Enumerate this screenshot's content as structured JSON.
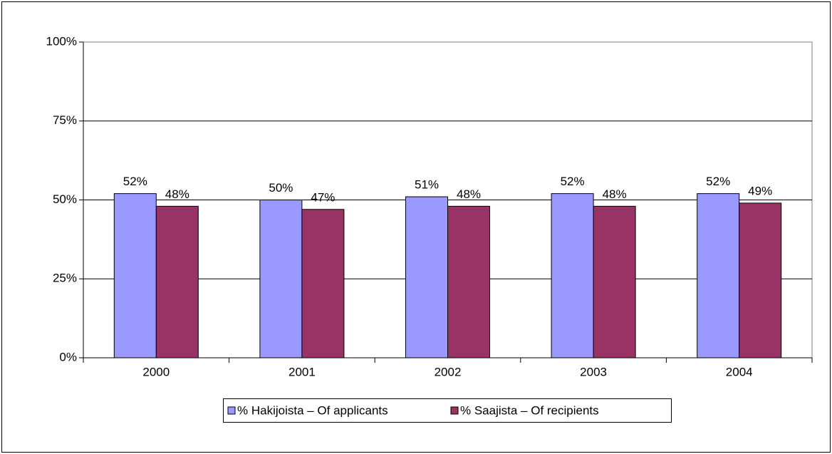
{
  "chart_data": {
    "type": "bar",
    "categories": [
      "2000",
      "2001",
      "2002",
      "2003",
      "2004"
    ],
    "series": [
      {
        "name": "% Hakijoista – Of applicants",
        "color": "#9999ff",
        "values": [
          52,
          50,
          51,
          52,
          52
        ],
        "value_labels": [
          "52%",
          "50%",
          "51%",
          "52%",
          "52%"
        ]
      },
      {
        "name": "% Saajista – Of recipients",
        "color": "#993366",
        "values": [
          48,
          47,
          48,
          48,
          49
        ],
        "value_labels": [
          "48%",
          "47%",
          "48%",
          "48%",
          "49%"
        ]
      }
    ],
    "ylim": [
      0,
      100
    ],
    "yticks": [
      {
        "value": 0,
        "label": "0%"
      },
      {
        "value": 25,
        "label": "25%"
      },
      {
        "value": 50,
        "label": "50%"
      },
      {
        "value": 75,
        "label": "75%"
      },
      {
        "value": 100,
        "label": "100%"
      }
    ],
    "grid": true,
    "legend": "bottom"
  }
}
